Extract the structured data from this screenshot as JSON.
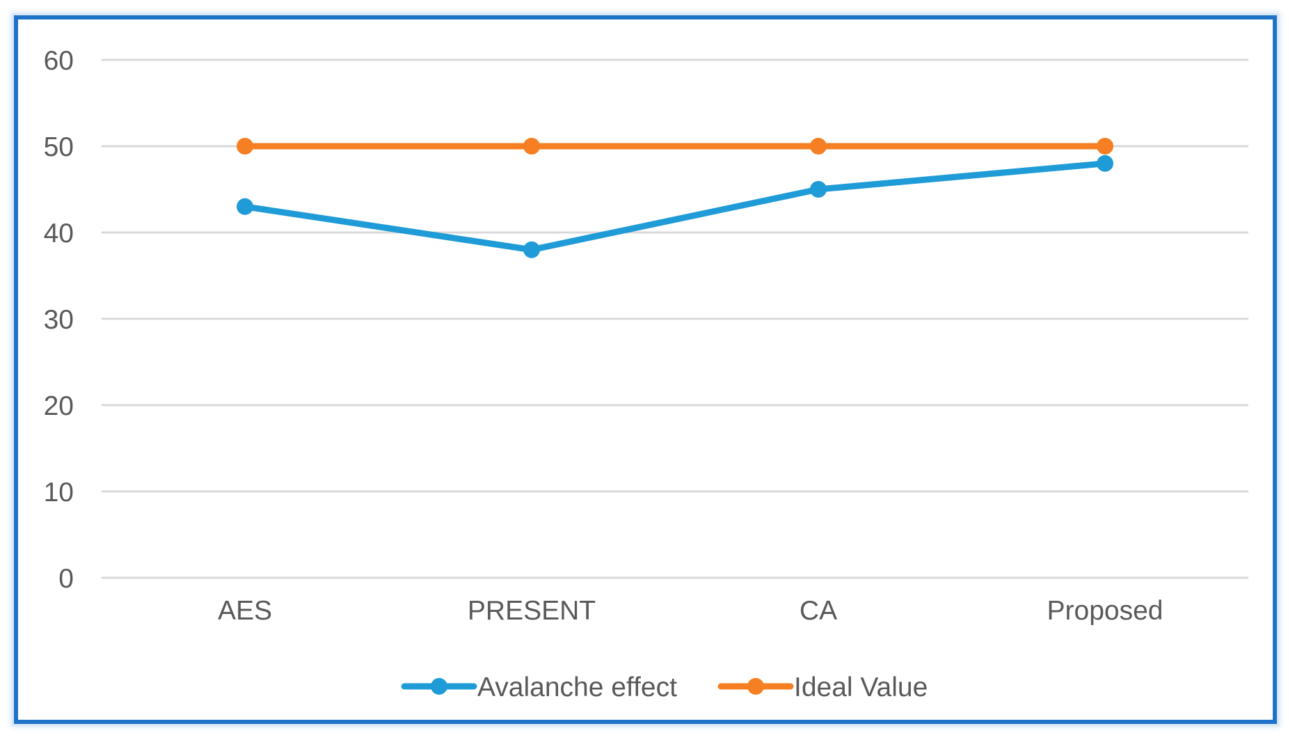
{
  "chart_data": {
    "type": "line",
    "title": "",
    "xlabel": "",
    "ylabel": "",
    "categories": [
      "AES",
      "PRESENT",
      "CA",
      "Proposed"
    ],
    "ylim": [
      0,
      60
    ],
    "yticks": [
      0,
      10,
      20,
      30,
      40,
      50,
      60
    ],
    "grid": true,
    "legend_position": "bottom",
    "series": [
      {
        "name": "Avalanche effect",
        "values": [
          43,
          38,
          45,
          48
        ],
        "color": "#1f9bd7"
      },
      {
        "name": "Ideal Value",
        "values": [
          50,
          50,
          50,
          50
        ],
        "color": "#f57f22"
      }
    ]
  }
}
